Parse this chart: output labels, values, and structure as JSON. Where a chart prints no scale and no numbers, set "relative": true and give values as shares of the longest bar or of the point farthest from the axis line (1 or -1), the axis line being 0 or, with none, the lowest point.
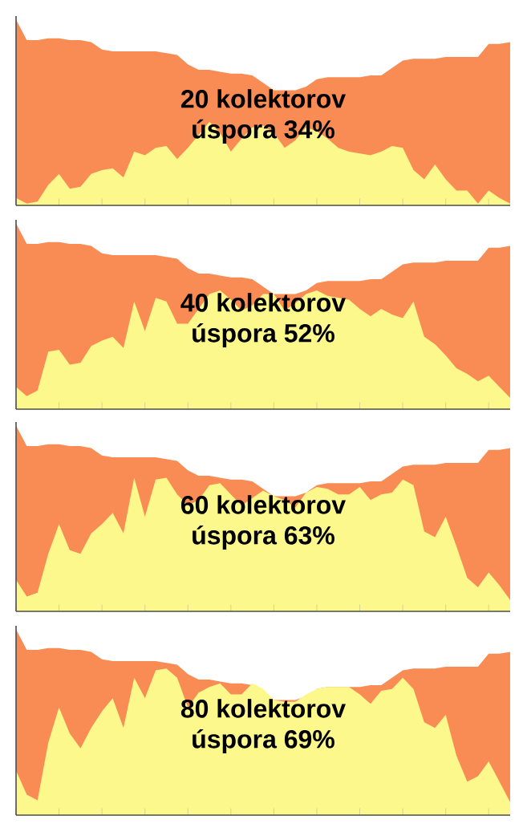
{
  "chart_data": [
    {
      "type": "area",
      "relative": true,
      "categories": [
        null,
        null,
        null,
        null,
        null,
        null,
        null,
        null,
        null,
        null,
        null,
        null,
        null,
        null,
        null,
        null,
        null,
        null,
        null,
        null,
        null,
        null,
        null,
        null,
        null,
        null,
        null,
        null,
        null,
        null,
        null,
        null,
        null,
        null,
        null,
        null,
        null,
        null,
        null,
        null,
        null,
        null,
        null,
        null,
        null,
        null,
        null
      ],
      "series": [
        {
          "color": "#f98c54",
          "values": [
            1.0,
            0.89,
            0.89,
            0.9,
            0.9,
            0.89,
            0.89,
            0.88,
            0.84,
            0.83,
            0.83,
            0.83,
            0.83,
            0.83,
            0.82,
            0.81,
            0.76,
            0.73,
            0.73,
            0.72,
            0.71,
            0.71,
            0.7,
            0.66,
            0.62,
            0.62,
            0.62,
            0.64,
            0.68,
            0.69,
            0.69,
            0.69,
            0.69,
            0.7,
            0.7,
            0.74,
            0.78,
            0.79,
            0.79,
            0.79,
            0.8,
            0.8,
            0.8,
            0.8,
            0.87,
            0.87,
            0.88
          ]
        },
        {
          "color": "#fcf88c",
          "values": [
            0.04,
            0.01,
            0.02,
            0.11,
            0.17,
            0.09,
            0.1,
            0.17,
            0.19,
            0.2,
            0.15,
            0.29,
            0.27,
            0.31,
            0.32,
            0.25,
            0.31,
            0.38,
            0.45,
            0.39,
            0.29,
            0.36,
            0.42,
            0.43,
            0.39,
            0.31,
            0.35,
            0.42,
            0.4,
            0.36,
            0.31,
            0.29,
            0.28,
            0.27,
            0.29,
            0.32,
            0.31,
            0.19,
            0.14,
            0.22,
            0.14,
            0.08,
            0.08,
            0.01,
            0.08,
            0.04,
            0.01
          ]
        }
      ],
      "annotations": [
        "20 kolektorov",
        "úspora 34%"
      ]
    },
    {
      "type": "area",
      "relative": true,
      "categories": [
        null,
        null,
        null,
        null,
        null,
        null,
        null,
        null,
        null,
        null,
        null,
        null,
        null,
        null,
        null,
        null,
        null,
        null,
        null,
        null,
        null,
        null,
        null,
        null,
        null,
        null,
        null,
        null,
        null,
        null,
        null,
        null,
        null,
        null,
        null,
        null,
        null,
        null,
        null,
        null,
        null,
        null,
        null,
        null,
        null,
        null,
        null
      ],
      "series": [
        {
          "color": "#f98c54",
          "values": [
            1.0,
            0.89,
            0.89,
            0.9,
            0.9,
            0.89,
            0.89,
            0.88,
            0.84,
            0.83,
            0.83,
            0.83,
            0.83,
            0.83,
            0.82,
            0.81,
            0.76,
            0.73,
            0.73,
            0.72,
            0.71,
            0.71,
            0.7,
            0.66,
            0.62,
            0.62,
            0.62,
            0.64,
            0.68,
            0.69,
            0.69,
            0.69,
            0.69,
            0.7,
            0.7,
            0.74,
            0.78,
            0.79,
            0.79,
            0.79,
            0.8,
            0.8,
            0.8,
            0.8,
            0.87,
            0.87,
            0.88
          ]
        },
        {
          "color": "#fcf88c",
          "values": [
            0.12,
            0.07,
            0.1,
            0.31,
            0.32,
            0.24,
            0.25,
            0.34,
            0.37,
            0.39,
            0.33,
            0.58,
            0.42,
            0.6,
            0.58,
            0.46,
            0.46,
            0.54,
            0.62,
            0.64,
            0.59,
            0.53,
            0.56,
            0.62,
            0.62,
            0.53,
            0.57,
            0.62,
            0.64,
            0.61,
            0.6,
            0.59,
            0.54,
            0.5,
            0.54,
            0.51,
            0.49,
            0.58,
            0.39,
            0.35,
            0.29,
            0.22,
            0.19,
            0.15,
            0.18,
            0.12,
            0.06
          ]
        }
      ],
      "annotations": [
        "40 kolektorov",
        "úspora 52%"
      ]
    },
    {
      "type": "area",
      "relative": true,
      "categories": [
        null,
        null,
        null,
        null,
        null,
        null,
        null,
        null,
        null,
        null,
        null,
        null,
        null,
        null,
        null,
        null,
        null,
        null,
        null,
        null,
        null,
        null,
        null,
        null,
        null,
        null,
        null,
        null,
        null,
        null,
        null,
        null,
        null,
        null,
        null,
        null,
        null,
        null,
        null,
        null,
        null,
        null,
        null,
        null,
        null,
        null,
        null
      ],
      "series": [
        {
          "color": "#f98c54",
          "values": [
            1.0,
            0.89,
            0.89,
            0.9,
            0.9,
            0.89,
            0.89,
            0.88,
            0.84,
            0.83,
            0.83,
            0.83,
            0.83,
            0.83,
            0.82,
            0.81,
            0.76,
            0.73,
            0.73,
            0.72,
            0.71,
            0.71,
            0.7,
            0.66,
            0.62,
            0.62,
            0.62,
            0.64,
            0.68,
            0.69,
            0.69,
            0.69,
            0.69,
            0.7,
            0.7,
            0.74,
            0.78,
            0.79,
            0.79,
            0.79,
            0.8,
            0.8,
            0.8,
            0.8,
            0.87,
            0.87,
            0.88
          ]
        },
        {
          "color": "#fcf88c",
          "values": [
            0.17,
            0.08,
            0.1,
            0.31,
            0.47,
            0.33,
            0.31,
            0.42,
            0.47,
            0.53,
            0.42,
            0.72,
            0.51,
            0.71,
            0.72,
            0.63,
            0.57,
            0.6,
            0.68,
            0.69,
            0.63,
            0.57,
            0.61,
            0.65,
            0.62,
            0.6,
            0.56,
            0.64,
            0.67,
            0.66,
            0.63,
            0.63,
            0.67,
            0.6,
            0.63,
            0.64,
            0.71,
            0.68,
            0.43,
            0.4,
            0.51,
            0.35,
            0.18,
            0.13,
            0.21,
            0.14,
            0.06
          ]
        }
      ],
      "annotations": [
        "60 kolektorov",
        "úspora 63%"
      ]
    },
    {
      "type": "area",
      "relative": true,
      "categories": [
        null,
        null,
        null,
        null,
        null,
        null,
        null,
        null,
        null,
        null,
        null,
        null,
        null,
        null,
        null,
        null,
        null,
        null,
        null,
        null,
        null,
        null,
        null,
        null,
        null,
        null,
        null,
        null,
        null,
        null,
        null,
        null,
        null,
        null,
        null,
        null,
        null,
        null,
        null,
        null,
        null,
        null,
        null,
        null,
        null,
        null,
        null
      ],
      "series": [
        {
          "color": "#f98c54",
          "values": [
            1.0,
            0.89,
            0.89,
            0.9,
            0.9,
            0.89,
            0.89,
            0.88,
            0.84,
            0.83,
            0.83,
            0.83,
            0.83,
            0.83,
            0.82,
            0.81,
            0.76,
            0.73,
            0.73,
            0.72,
            0.71,
            0.71,
            0.7,
            0.66,
            0.62,
            0.62,
            0.62,
            0.64,
            0.68,
            0.69,
            0.69,
            0.69,
            0.69,
            0.7,
            0.7,
            0.74,
            0.78,
            0.79,
            0.79,
            0.79,
            0.8,
            0.8,
            0.8,
            0.8,
            0.87,
            0.87,
            0.88
          ]
        },
        {
          "color": "#fcf88c",
          "values": [
            0.24,
            0.11,
            0.08,
            0.39,
            0.58,
            0.44,
            0.36,
            0.47,
            0.56,
            0.63,
            0.47,
            0.74,
            0.63,
            0.78,
            0.79,
            0.74,
            0.58,
            0.66,
            0.69,
            0.71,
            0.65,
            0.65,
            0.71,
            0.68,
            0.62,
            0.61,
            0.61,
            0.65,
            0.68,
            0.69,
            0.69,
            0.69,
            0.65,
            0.6,
            0.67,
            0.68,
            0.74,
            0.68,
            0.5,
            0.47,
            0.54,
            0.32,
            0.18,
            0.21,
            0.29,
            0.18,
            0.07
          ]
        }
      ],
      "annotations": [
        "80 kolektorov",
        "úspora 69%"
      ]
    }
  ]
}
